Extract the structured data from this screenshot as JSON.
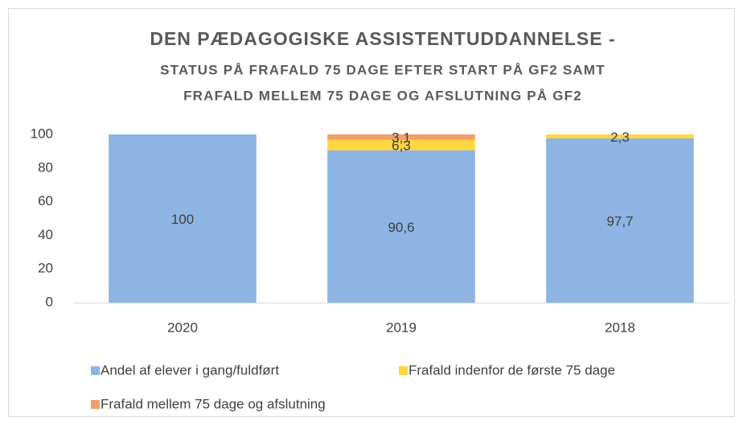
{
  "chart_data": {
    "type": "stacked_bar",
    "title": "DEN PÆDAGOGISKE ASSISTENTUDDANNELSE -",
    "subtitle": [
      "STATUS PÅ FRAFALD 75 DAGE EFTER START PÅ GF2 SAMT",
      "FRAFALD MELLEM 75 DAGE OG AFSLUTNING PÅ GF2"
    ],
    "categories": [
      "2020",
      "2019",
      "2018"
    ],
    "series": [
      {
        "name": "Andel af elever i gang/fuldført",
        "color": "#8db4e2",
        "values": [
          100,
          90.6,
          97.7
        ],
        "value_labels": [
          "100",
          "90,6",
          "97,7"
        ]
      },
      {
        "name": "Frafald indenfor de første 75 dage",
        "color": "#ffd640",
        "values": [
          null,
          6.3,
          2.3
        ],
        "value_labels": [
          null,
          "6,3",
          "2,3"
        ]
      },
      {
        "name": "Frafald mellem 75 dage og afslutning",
        "color": "#f0a06a",
        "values": [
          null,
          3.1,
          null
        ],
        "value_labels": [
          null,
          "3,1",
          null
        ]
      }
    ],
    "ylim": [
      0,
      100
    ],
    "yticks": [
      0,
      20,
      40,
      60,
      80,
      100
    ],
    "grid": false
  }
}
